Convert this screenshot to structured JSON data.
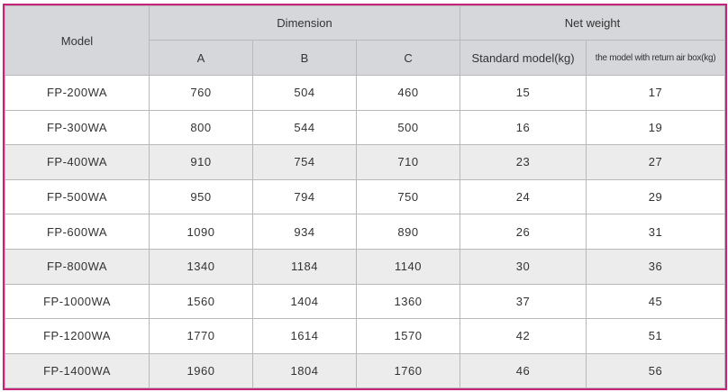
{
  "table": {
    "headers": {
      "model": "Model",
      "dimension": "Dimension",
      "net_weight": "Net weight",
      "sub": [
        "A",
        "B",
        "C",
        "Standard model(kg)",
        "the model with return air box(kg)"
      ]
    },
    "rows": [
      [
        "FP-200WA",
        "760",
        "504",
        "460",
        "15",
        "17"
      ],
      [
        "FP-300WA",
        "800",
        "544",
        "500",
        "16",
        "19"
      ],
      [
        "FP-400WA",
        "910",
        "754",
        "710",
        "23",
        "27"
      ],
      [
        "FP-500WA",
        "950",
        "794",
        "750",
        "24",
        "29"
      ],
      [
        "FP-600WA",
        "1090",
        "934",
        "890",
        "26",
        "31"
      ],
      [
        "FP-800WA",
        "1340",
        "1184",
        "1140",
        "30",
        "36"
      ],
      [
        "FP-1000WA",
        "1560",
        "1404",
        "1360",
        "37",
        "45"
      ],
      [
        "FP-1200WA",
        "1770",
        "1614",
        "1570",
        "42",
        "51"
      ],
      [
        "FP-1400WA",
        "1960",
        "1804",
        "1760",
        "46",
        "56"
      ]
    ],
    "shaded_rows": [
      2,
      5,
      8
    ],
    "colors": {
      "border": "#c8237a",
      "header_bg": "#d5d7da",
      "shade_bg": "#ececec"
    }
  }
}
